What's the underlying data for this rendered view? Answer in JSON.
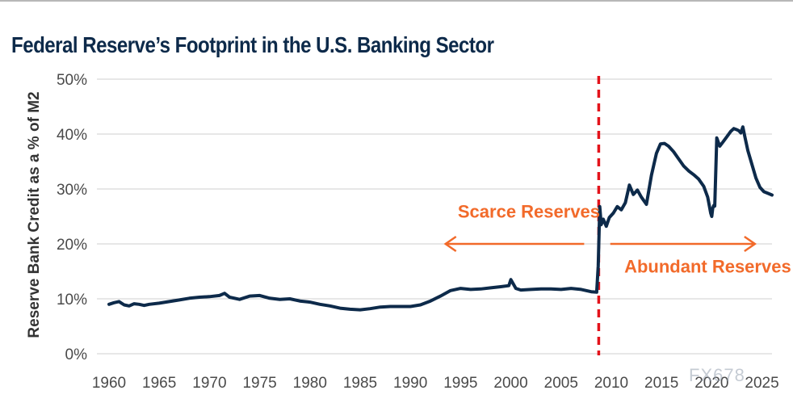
{
  "watermark": "FX678",
  "colors": {
    "line": "#0d2a4a",
    "accent": "#f26a2a",
    "divider": "#e3131b",
    "grid": "#cfcfcf",
    "text": "#4a4a4a"
  },
  "chart_data": {
    "type": "line",
    "title": "Federal Reserve’s Footprint in the U.S. Banking Sector",
    "xlabel": "",
    "ylabel": "Reserve Bank Credit as a % of M2",
    "xlim": [
      1960,
      2026
    ],
    "ylim": [
      0,
      50
    ],
    "x_ticks": [
      1960,
      1965,
      1970,
      1975,
      1980,
      1985,
      1990,
      1995,
      2000,
      2005,
      2010,
      2015,
      2020,
      2025
    ],
    "y_ticks": [
      "0%",
      "10%",
      "20%",
      "30%",
      "40%",
      "50%"
    ],
    "y_tick_values": [
      0,
      10,
      20,
      30,
      40,
      50
    ],
    "grid": "horizontal",
    "divider_x": 2008.75,
    "annotations": [
      {
        "text": "Scarce Reserves",
        "x": 2001.8,
        "y": 24.8,
        "arrow": "left",
        "arrow_from": 2007.3,
        "arrow_to": 1993.5,
        "arrow_y": 20.0
      },
      {
        "text": "Abundant Reserves",
        "x": 2019.6,
        "y": 14.8,
        "arrow": "right",
        "arrow_from": 2009.9,
        "arrow_to": 2024.3,
        "arrow_y": 20.0
      }
    ],
    "series": [
      {
        "x": [
          1960,
          1960.5,
          1961,
          1961.5,
          1962,
          1962.5,
          1963,
          1963.5,
          1964,
          1965,
          1966,
          1967,
          1968,
          1969,
          1970,
          1971,
          1971.5,
          1972,
          1973,
          1974,
          1975,
          1976,
          1977,
          1978,
          1979,
          1980,
          1981,
          1982,
          1983,
          1984,
          1985,
          1986,
          1987,
          1988,
          1989,
          1990,
          1991,
          1992,
          1993,
          1994,
          1995,
          1996,
          1997,
          1998,
          1999,
          1999.8,
          2000,
          2000.5,
          2001,
          2002,
          2003,
          2004,
          2005,
          2006,
          2007,
          2008,
          2008.55,
          2008.7,
          2008.85,
          2009.0,
          2009.2,
          2009.5,
          2009.8,
          2010.2,
          2010.6,
          2011,
          2011.4,
          2011.8,
          2012.2,
          2012.6,
          2013.0,
          2013.5,
          2014.0,
          2014.5,
          2014.9,
          2015.3,
          2015.7,
          2016.2,
          2016.7,
          2017.2,
          2017.7,
          2018.2,
          2018.7,
          2019.2,
          2019.6,
          2019.9,
          2020.0,
          2020.1,
          2020.2,
          2020.3,
          2020.5,
          2020.8,
          2021.1,
          2021.5,
          2021.9,
          2022.2,
          2022.5,
          2022.7,
          2022.9,
          2023.1,
          2023.3,
          2023.6,
          2024.0,
          2024.4,
          2024.8,
          2025.2,
          2025.6,
          2026.0
        ],
        "values": [
          9.0,
          9.3,
          9.5,
          8.9,
          8.7,
          9.1,
          9.0,
          8.8,
          9.0,
          9.2,
          9.5,
          9.8,
          10.1,
          10.3,
          10.4,
          10.6,
          11.0,
          10.3,
          9.9,
          10.5,
          10.6,
          10.1,
          9.9,
          10.0,
          9.6,
          9.4,
          9.0,
          8.7,
          8.3,
          8.1,
          8.0,
          8.2,
          8.5,
          8.6,
          8.6,
          8.6,
          8.9,
          9.6,
          10.5,
          11.5,
          11.9,
          11.7,
          11.8,
          12.0,
          12.2,
          12.4,
          13.5,
          11.9,
          11.6,
          11.7,
          11.8,
          11.8,
          11.7,
          11.9,
          11.7,
          11.3,
          11.2,
          16.0,
          26.8,
          23.5,
          24.5,
          23.2,
          24.8,
          25.6,
          26.8,
          26.2,
          27.5,
          30.7,
          29.0,
          29.8,
          28.5,
          27.2,
          32.5,
          36.5,
          38.2,
          38.3,
          37.8,
          36.8,
          35.5,
          34.2,
          33.3,
          32.6,
          31.8,
          30.5,
          28.5,
          25.6,
          25.0,
          26.5,
          27.0,
          26.9,
          39.3,
          37.8,
          38.5,
          39.5,
          40.5,
          41.0,
          40.8,
          40.6,
          40.2,
          41.3,
          39.5,
          37.0,
          34.5,
          32.0,
          30.3,
          29.5,
          29.2,
          28.9
        ]
      }
    ]
  }
}
